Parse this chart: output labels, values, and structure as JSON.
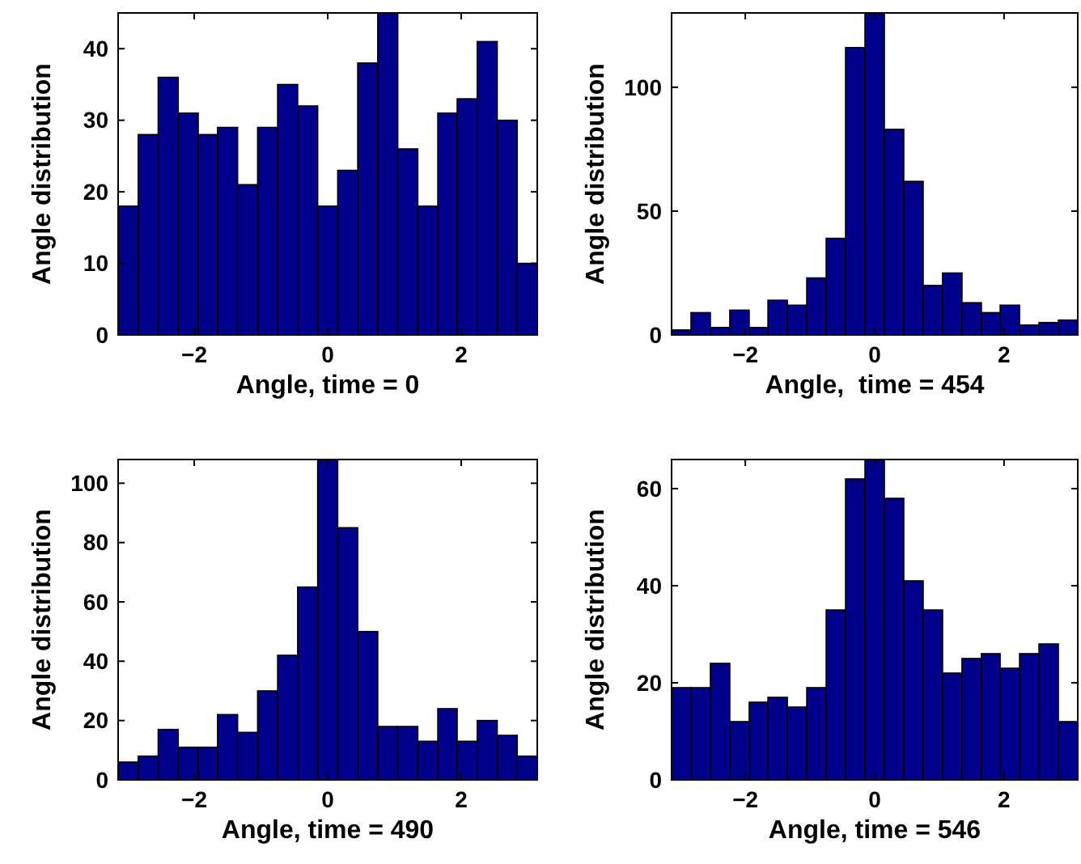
{
  "chart_data": [
    {
      "type": "histogram",
      "xlabel": "Angle, time = 0",
      "ylabel": "Angle distribution",
      "color": "#00008b",
      "bins": [
        -3.14,
        -2.84,
        -2.54,
        -2.24,
        -1.94,
        -1.65,
        -1.35,
        -1.05,
        -0.75,
        -0.45,
        -0.15,
        0.15,
        0.45,
        0.75,
        1.05,
        1.35,
        1.65,
        1.94,
        2.24,
        2.54,
        2.84,
        3.14
      ],
      "values": [
        18,
        28,
        36,
        31,
        28,
        29,
        21,
        29,
        35,
        32,
        18,
        23,
        38,
        45,
        26,
        18,
        31,
        33,
        41,
        30,
        10
      ],
      "xlim": [
        -3.14,
        3.14
      ],
      "ylim": [
        0,
        45
      ],
      "xticks": [
        -2,
        0,
        2
      ],
      "yticks": [
        0,
        10,
        20,
        30,
        40
      ]
    },
    {
      "type": "histogram",
      "xlabel": "Angle,  time = 454",
      "ylabel": "Angle distribution",
      "color": "#00008b",
      "bins": [
        -3.14,
        -2.84,
        -2.54,
        -2.24,
        -1.94,
        -1.65,
        -1.35,
        -1.05,
        -0.75,
        -0.45,
        -0.15,
        0.15,
        0.45,
        0.75,
        1.05,
        1.35,
        1.65,
        1.94,
        2.24,
        2.54,
        2.84,
        3.14
      ],
      "values": [
        2,
        9,
        3,
        10,
        3,
        14,
        12,
        23,
        39,
        116,
        130,
        83,
        62,
        20,
        25,
        13,
        9,
        12,
        4,
        5,
        6
      ],
      "xlim": [
        -3.14,
        3.14
      ],
      "ylim": [
        0,
        130
      ],
      "xticks": [
        -2,
        0,
        2
      ],
      "yticks": [
        0,
        50,
        100
      ]
    },
    {
      "type": "histogram",
      "xlabel": "Angle, time = 490",
      "ylabel": "Angle distribution",
      "color": "#00008b",
      "bins": [
        -3.14,
        -2.84,
        -2.54,
        -2.24,
        -1.94,
        -1.65,
        -1.35,
        -1.05,
        -0.75,
        -0.45,
        -0.15,
        0.15,
        0.45,
        0.75,
        1.05,
        1.35,
        1.65,
        1.94,
        2.24,
        2.54,
        2.84,
        3.14
      ],
      "values": [
        6,
        8,
        17,
        11,
        11,
        22,
        16,
        30,
        42,
        65,
        108,
        85,
        50,
        18,
        18,
        13,
        24,
        13,
        20,
        15,
        8
      ],
      "xlim": [
        -3.14,
        3.14
      ],
      "ylim": [
        0,
        108
      ],
      "xticks": [
        -2,
        0,
        2
      ],
      "yticks": [
        0,
        20,
        40,
        60,
        80,
        100
      ]
    },
    {
      "type": "histogram",
      "xlabel": "Angle, time = 546",
      "ylabel": "Angle distribution",
      "color": "#00008b",
      "bins": [
        -3.14,
        -2.84,
        -2.54,
        -2.24,
        -1.94,
        -1.65,
        -1.35,
        -1.05,
        -0.75,
        -0.45,
        -0.15,
        0.15,
        0.45,
        0.75,
        1.05,
        1.35,
        1.65,
        1.94,
        2.24,
        2.54,
        2.84,
        3.14
      ],
      "values": [
        19,
        19,
        24,
        12,
        16,
        17,
        15,
        19,
        35,
        62,
        66,
        58,
        41,
        35,
        22,
        25,
        26,
        23,
        26,
        28,
        12
      ],
      "xlim": [
        -3.14,
        3.14
      ],
      "ylim": [
        0,
        66
      ],
      "xticks": [
        -2,
        0,
        2
      ],
      "yticks": [
        0,
        20,
        40,
        60
      ]
    }
  ]
}
